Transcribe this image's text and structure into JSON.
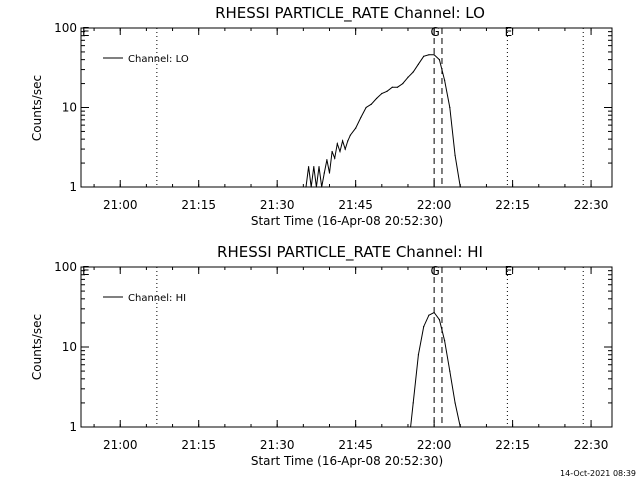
{
  "chart_data": [
    {
      "type": "line",
      "title": "RHESSI PARTICLE_RATE Channel: LO",
      "xlabel": "Start Time (16-Apr-08 20:52:30)",
      "ylabel": "Counts/sec",
      "yscale": "log",
      "ylim": [
        1,
        100
      ],
      "xlim": [
        "20:52:30",
        "22:34:00"
      ],
      "xticks": [
        "21:00",
        "21:15",
        "21:30",
        "21:45",
        "22:00",
        "22:15",
        "22:30"
      ],
      "yticks": [
        "1",
        "10",
        "100"
      ],
      "legend_placement": "top-left",
      "series": [
        {
          "name": "Channel: LO",
          "x": [
            "21:35:30",
            "21:36:00",
            "21:36:30",
            "21:37:00",
            "21:37:30",
            "21:38:00",
            "21:38:30",
            "21:39:00",
            "21:39:30",
            "21:40:00",
            "21:40:30",
            "21:41:00",
            "21:41:30",
            "21:42:00",
            "21:42:30",
            "21:43:00",
            "21:43:30",
            "21:44:00",
            "21:45:00",
            "21:46:00",
            "21:47:00",
            "21:48:00",
            "21:49:00",
            "21:50:00",
            "21:51:00",
            "21:52:00",
            "21:53:00",
            "21:54:00",
            "21:55:00",
            "21:56:00",
            "21:57:00",
            "21:58:00",
            "21:59:00",
            "22:00:00",
            "22:01:00",
            "22:02:00",
            "22:03:00",
            "22:04:00",
            "22:05:00"
          ],
          "y": [
            1,
            1.8,
            1,
            1.8,
            1,
            1.8,
            1,
            1.5,
            2.2,
            1.5,
            2.8,
            2.3,
            3.5,
            2.8,
            3.8,
            3.0,
            3.8,
            4.5,
            5.5,
            7.5,
            10,
            11,
            13,
            15,
            16,
            18,
            18,
            20,
            24,
            28,
            35,
            44,
            46,
            46,
            40,
            22,
            10,
            2.5,
            1
          ]
        }
      ],
      "vlines_dotted": [
        "21:07:00",
        "22:14:00",
        "22:28:30"
      ],
      "vlines_dashed": [
        "22:00:00",
        "22:01:30"
      ],
      "markers": [
        {
          "label": "E",
          "x": "20:52:30"
        },
        {
          "label": "G",
          "x": "22:00:00"
        },
        {
          "label": "E",
          "x": "22:14:00"
        }
      ]
    },
    {
      "type": "line",
      "title": "RHESSI PARTICLE_RATE Channel: HI",
      "xlabel": "Start Time (16-Apr-08 20:52:30)",
      "ylabel": "Counts/sec",
      "yscale": "log",
      "ylim": [
        1,
        100
      ],
      "xlim": [
        "20:52:30",
        "22:34:00"
      ],
      "xticks": [
        "21:00",
        "21:15",
        "21:30",
        "21:45",
        "22:00",
        "22:15",
        "22:30"
      ],
      "yticks": [
        "1",
        "10",
        "100"
      ],
      "legend_placement": "top-left",
      "series": [
        {
          "name": "Channel: HI",
          "x": [
            "21:55:30",
            "21:56:00",
            "21:57:00",
            "21:58:00",
            "21:59:00",
            "22:00:00",
            "22:01:00",
            "22:02:00",
            "22:03:00",
            "22:04:00",
            "22:05:00"
          ],
          "y": [
            1,
            2,
            8,
            18,
            25,
            27,
            22,
            12,
            5,
            2,
            1
          ]
        }
      ],
      "vlines_dotted": [
        "21:07:00",
        "22:14:00",
        "22:28:30"
      ],
      "vlines_dashed": [
        "22:00:00",
        "22:01:30"
      ],
      "markers": [
        {
          "label": "E",
          "x": "20:52:30"
        },
        {
          "label": "G",
          "x": "22:00:00"
        },
        {
          "label": "E",
          "x": "22:14:00"
        }
      ]
    }
  ],
  "footer": {
    "timestamp": "14-Oct-2021 08:39"
  }
}
